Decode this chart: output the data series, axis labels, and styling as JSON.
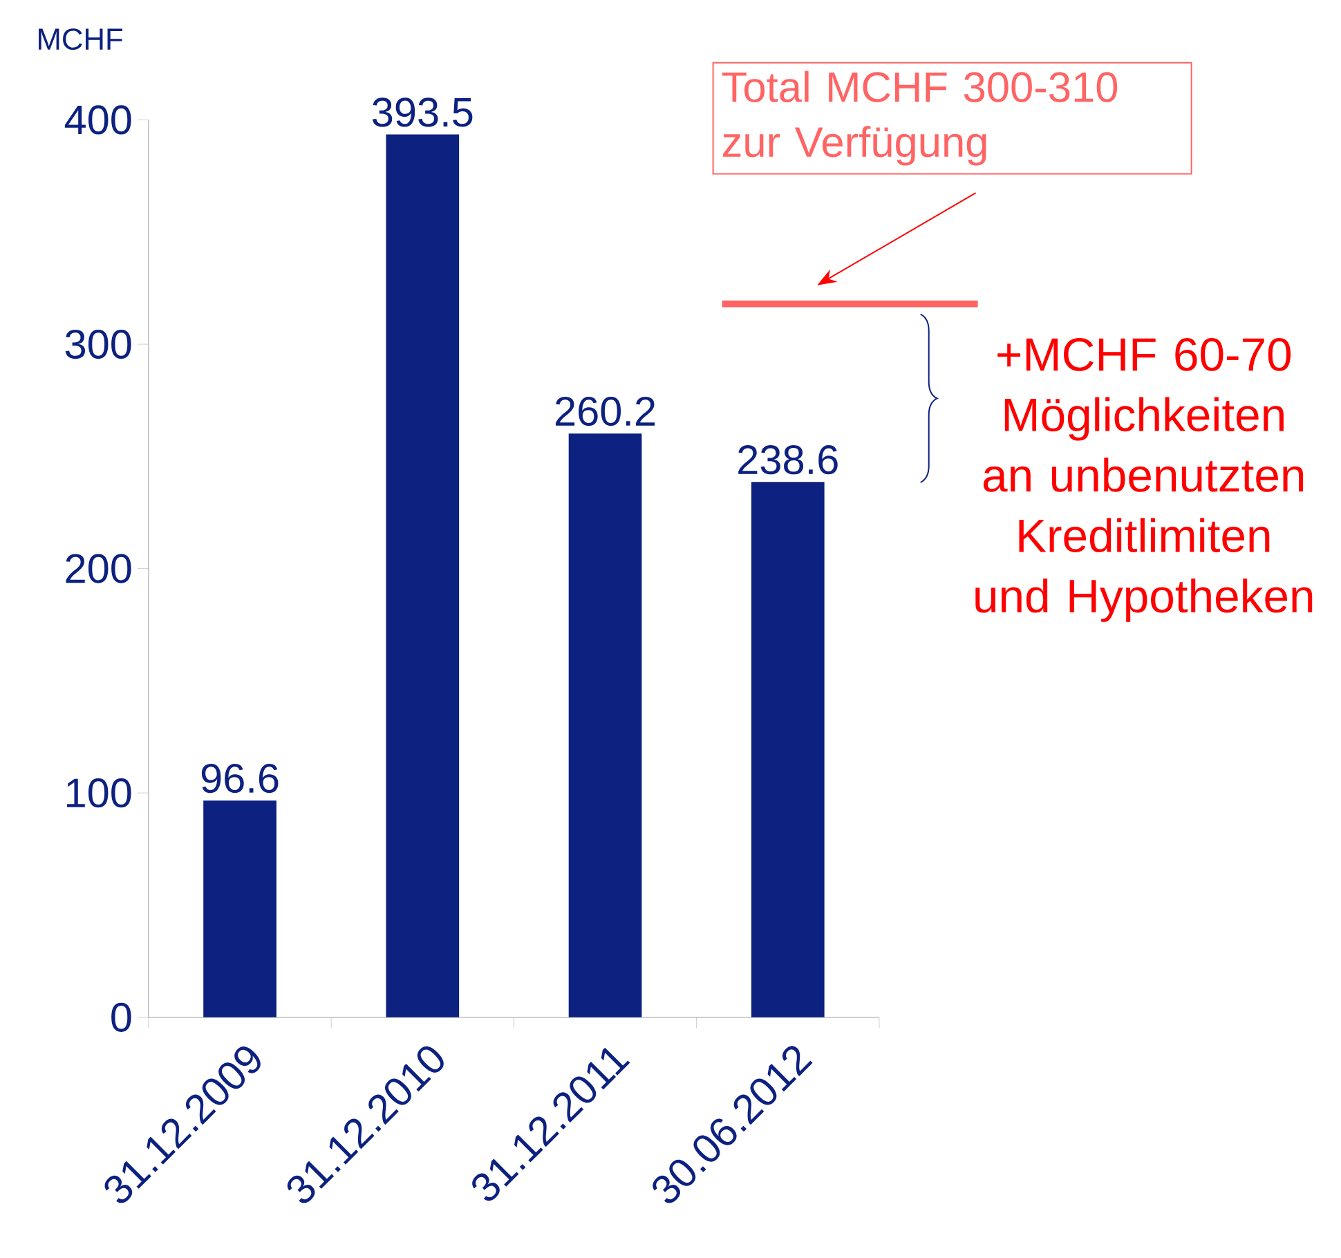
{
  "chart_data": {
    "type": "bar",
    "ylabel": "MCHF",
    "categories": [
      "31.12.2009",
      "31.12.2010",
      "31.12.2011",
      "30.06.2012"
    ],
    "values": [
      96.6,
      393.5,
      260.2,
      238.6
    ],
    "color": "#0c2180",
    "ylim": [
      0,
      400
    ],
    "yticks": [
      0,
      100,
      200,
      300,
      400
    ],
    "data_labels": true,
    "grid": false,
    "ref_lines": [
      {
        "axis": "y",
        "value": 318,
        "color": "#ff6464"
      }
    ],
    "annotations": [
      "Total MCHF 300-310 zur Verfügung",
      "+MCHF 60-70 Möglichkeiten an unbenutzten Kreditlimiten und Hypotheken"
    ]
  }
}
